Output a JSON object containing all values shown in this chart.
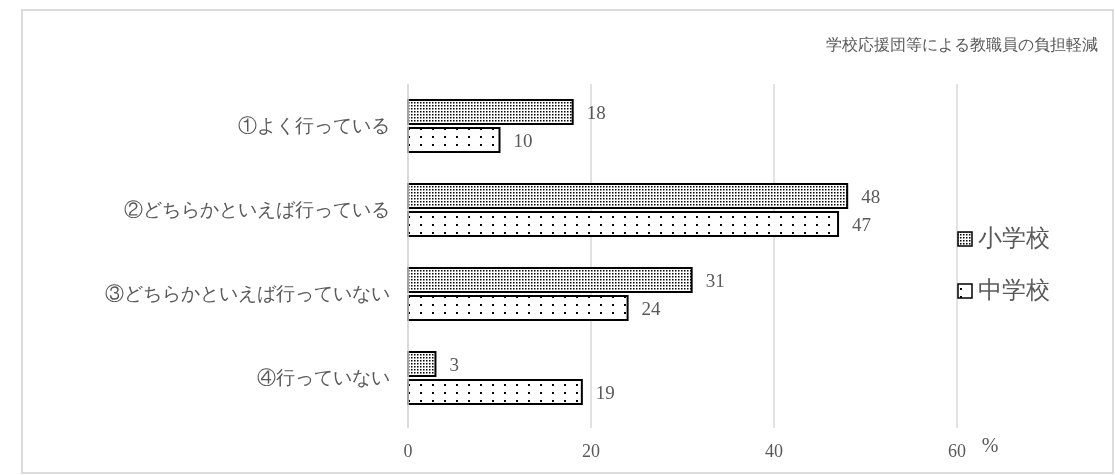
{
  "chart_data": {
    "type": "bar",
    "orientation": "horizontal",
    "title": "学校応援団等による教職員の負担軽減",
    "xlabel": "%",
    "categories": [
      "①よく行っている",
      "②どちらかといえば行っている",
      "③どちらかといえば行っていない",
      "④行っていない"
    ],
    "series": [
      {
        "name": "小学校",
        "color": "#000000",
        "values": [
          18,
          48,
          31,
          3
        ]
      },
      {
        "name": "中学校",
        "color": "#000000",
        "values": [
          10,
          47,
          24,
          19
        ]
      }
    ],
    "xlim": [
      0,
      60
    ],
    "xticks": [
      0,
      20,
      40,
      60
    ],
    "grid": "x",
    "data_labels": true,
    "legend": "right"
  }
}
